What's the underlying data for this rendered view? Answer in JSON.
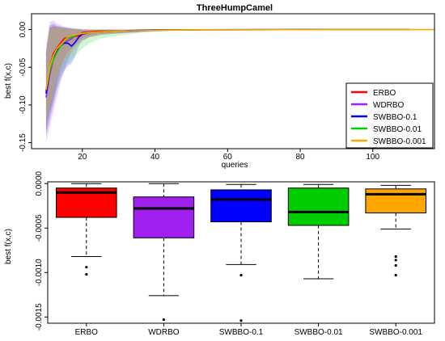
{
  "colors": {
    "ERBO": "#ff0000",
    "WDRBO": "#a020f0",
    "SWBBO-0.1": "#0000ff",
    "SWBBO-0.01": "#00cd00",
    "SWBBO-0.001": "#ffa500"
  },
  "chart_data": [
    {
      "type": "line",
      "title": "ThreeHumpCamel",
      "xlabel": "queries",
      "ylabel": "best f(x,c)",
      "xlim": [
        6,
        117
      ],
      "ylim": [
        -0.158,
        0.021
      ],
      "x_ticks": [
        20,
        40,
        60,
        80,
        100
      ],
      "y_ticks": [
        0.0,
        -0.05,
        -0.1,
        -0.15
      ],
      "y_tick_labels": [
        "0.00",
        "-0.05",
        "-0.10",
        "-0.15"
      ],
      "legend_position": "bottom-right",
      "shaded_bands": true,
      "series": [
        {
          "name": "ERBO",
          "x": [
            10,
            11,
            12,
            13,
            14,
            15,
            16,
            17,
            18,
            19,
            20,
            22,
            25,
            30,
            35,
            40,
            45,
            50,
            60,
            70,
            80,
            85,
            90,
            100,
            110
          ],
          "y": [
            -0.082,
            -0.05,
            -0.032,
            -0.024,
            -0.018,
            -0.012,
            -0.01,
            -0.009,
            -0.009,
            -0.008,
            -0.004,
            -0.003,
            -0.002,
            -0.002,
            -0.001,
            -0.0005,
            -0.0003,
            -0.0002,
            -0.0002,
            -0.0001,
            -0.0001,
            0.0,
            0.0,
            0.0,
            0.0
          ],
          "lower": [
            -0.135,
            -0.11,
            -0.095,
            -0.07,
            -0.05,
            -0.038,
            -0.03,
            -0.025,
            -0.02,
            -0.014,
            -0.011,
            -0.008,
            -0.005,
            -0.004,
            -0.003,
            -0.0015,
            -0.001,
            -0.0008,
            -0.0005,
            -0.0003,
            -0.0002,
            -0.0001,
            -0.0001,
            0.0,
            0.0
          ],
          "upper": [
            -0.03,
            0.002,
            0.005,
            0.004,
            0.003,
            0.002,
            0.002,
            0.001,
            0.001,
            0.0,
            0.0,
            0.0,
            0.0,
            0.0,
            0.0,
            0.0,
            0.0,
            0.0,
            0.0,
            0.0,
            0.0,
            0.0,
            0.0,
            0.0,
            0.0
          ]
        },
        {
          "name": "WDRBO",
          "x": [
            10,
            11,
            12,
            13,
            14,
            15,
            16,
            17,
            18,
            19,
            20,
            22,
            25,
            30,
            35,
            40,
            45,
            50,
            60,
            70,
            80,
            90,
            100,
            110
          ],
          "y": [
            -0.09,
            -0.06,
            -0.04,
            -0.028,
            -0.022,
            -0.018,
            -0.015,
            -0.012,
            -0.008,
            -0.006,
            -0.005,
            -0.004,
            -0.003,
            -0.002,
            -0.002,
            -0.001,
            -0.0005,
            -0.0003,
            -0.0002,
            -0.0001,
            0.0,
            0.0,
            0.0,
            0.0
          ],
          "lower": [
            -0.15,
            -0.13,
            -0.11,
            -0.09,
            -0.07,
            -0.055,
            -0.04,
            -0.03,
            -0.022,
            -0.018,
            -0.014,
            -0.01,
            -0.007,
            -0.005,
            -0.004,
            -0.002,
            -0.001,
            -0.0008,
            -0.0005,
            -0.0003,
            -0.0002,
            -0.0001,
            0.0,
            0.0
          ],
          "upper": [
            -0.02,
            0.01,
            0.012,
            0.008,
            0.006,
            0.004,
            0.003,
            0.002,
            0.002,
            0.001,
            0.001,
            0.0,
            0.0,
            0.0,
            0.0,
            0.0,
            0.0,
            0.0,
            0.0,
            0.0,
            0.0,
            0.0,
            0.0,
            0.0
          ]
        },
        {
          "name": "SWBBO-0.1",
          "x": [
            10,
            11,
            12,
            13,
            14,
            15,
            16,
            17,
            18,
            19,
            20,
            22,
            25,
            30,
            35,
            40,
            45,
            50,
            60,
            70,
            80,
            90,
            100,
            110
          ],
          "y": [
            -0.085,
            -0.055,
            -0.036,
            -0.028,
            -0.02,
            -0.018,
            -0.018,
            -0.022,
            -0.017,
            -0.01,
            -0.006,
            -0.004,
            -0.003,
            -0.002,
            -0.001,
            -0.0005,
            -0.0003,
            -0.0002,
            -0.0001,
            -0.0001,
            0.0,
            0.0,
            0.0,
            0.0
          ],
          "lower": [
            -0.14,
            -0.12,
            -0.1,
            -0.08,
            -0.065,
            -0.055,
            -0.048,
            -0.045,
            -0.036,
            -0.022,
            -0.015,
            -0.01,
            -0.007,
            -0.005,
            -0.003,
            -0.0015,
            -0.001,
            -0.0006,
            -0.0004,
            -0.0002,
            -0.0001,
            0.0,
            0.0,
            0.0
          ],
          "upper": [
            -0.03,
            0.005,
            0.008,
            0.005,
            0.004,
            0.003,
            0.002,
            0.002,
            0.001,
            0.001,
            0.0,
            0.0,
            0.0,
            0.0,
            0.0,
            0.0,
            0.0,
            0.0,
            0.0,
            0.0,
            0.0,
            0.0,
            0.0,
            0.0
          ]
        },
        {
          "name": "SWBBO-0.01",
          "x": [
            10,
            11,
            12,
            13,
            14,
            15,
            16,
            17,
            18,
            19,
            20,
            22,
            25,
            30,
            35,
            40,
            45,
            50,
            60,
            70,
            75,
            80,
            90,
            100,
            110
          ],
          "y": [
            -0.08,
            -0.055,
            -0.04,
            -0.03,
            -0.022,
            -0.016,
            -0.012,
            -0.01,
            -0.008,
            -0.006,
            -0.005,
            -0.004,
            -0.003,
            -0.002,
            -0.0015,
            -0.001,
            -0.0005,
            -0.0003,
            -0.0002,
            -0.0002,
            -0.0001,
            -0.0001,
            0.0,
            0.0,
            0.0
          ],
          "lower": [
            -0.13,
            -0.11,
            -0.09,
            -0.075,
            -0.06,
            -0.05,
            -0.045,
            -0.04,
            -0.035,
            -0.03,
            -0.025,
            -0.018,
            -0.012,
            -0.008,
            -0.005,
            -0.003,
            -0.002,
            -0.001,
            -0.0008,
            -0.0006,
            -0.0004,
            -0.0003,
            -0.0002,
            -0.0001,
            0.0
          ],
          "upper": [
            -0.03,
            0.003,
            0.004,
            0.004,
            0.003,
            0.002,
            0.002,
            0.001,
            0.001,
            0.001,
            0.0,
            0.0,
            0.0,
            0.0,
            0.0,
            0.0,
            0.0,
            0.0,
            0.0,
            0.0,
            0.0,
            0.0,
            0.0,
            0.0,
            0.0
          ]
        },
        {
          "name": "SWBBO-0.001",
          "x": [
            10,
            11,
            12,
            13,
            14,
            15,
            16,
            17,
            18,
            19,
            20,
            22,
            25,
            30,
            35,
            40,
            45,
            50,
            60,
            70,
            80,
            90,
            100,
            110,
            117
          ],
          "y": [
            -0.08,
            -0.05,
            -0.035,
            -0.025,
            -0.02,
            -0.015,
            -0.01,
            -0.008,
            -0.007,
            -0.006,
            -0.005,
            -0.004,
            -0.003,
            -0.002,
            -0.0015,
            -0.001,
            -0.0005,
            -0.0003,
            -0.0002,
            -0.0001,
            -0.0001,
            0.0,
            0.0,
            0.0,
            0.0
          ],
          "lower": [
            -0.12,
            -0.1,
            -0.08,
            -0.06,
            -0.05,
            -0.04,
            -0.035,
            -0.03,
            -0.025,
            -0.02,
            -0.015,
            -0.01,
            -0.007,
            -0.005,
            -0.003,
            -0.002,
            -0.001,
            -0.0008,
            -0.0005,
            -0.0003,
            -0.0002,
            -0.0001,
            0.0,
            0.0,
            0.0
          ],
          "upper": [
            -0.04,
            0.002,
            0.003,
            0.003,
            0.002,
            0.002,
            0.001,
            0.001,
            0.001,
            0.0,
            0.0,
            0.0,
            0.0,
            0.0,
            0.0,
            0.0,
            0.0,
            0.0,
            0.0,
            0.0,
            0.0,
            0.0,
            0.0,
            0.0,
            0.0
          ]
        }
      ]
    },
    {
      "type": "box",
      "title": "",
      "xlabel": "",
      "ylabel": "best f(x,c)",
      "ylim": [
        -0.00157,
        2e-05
      ],
      "y_ticks": [
        0.0,
        -0.0005,
        -0.001,
        -0.0015
      ],
      "y_tick_labels": [
        "0.0000",
        "-0.0005",
        "-0.0010",
        "-0.0015"
      ],
      "categories": [
        "ERBO",
        "WDRBO",
        "SWBBO-0.1",
        "SWBBO-0.01",
        "SWBBO-0.001"
      ],
      "boxes": [
        {
          "name": "ERBO",
          "whisker_low": -0.00082,
          "q1": -0.00038,
          "median": -0.0001,
          "q3": -5e-05,
          "whisker_high": 0.0,
          "outliers": [
            -0.00094,
            -0.00102
          ]
        },
        {
          "name": "WDRBO",
          "whisker_low": -0.00126,
          "q1": -0.00061,
          "median": -0.00028,
          "q3": -0.00015,
          "whisker_high": 0.0,
          "outliers": [
            -0.00153
          ]
        },
        {
          "name": "SWBBO-0.1",
          "whisker_low": -0.00091,
          "q1": -0.00043,
          "median": -0.00018,
          "q3": -7e-05,
          "whisker_high": -1e-05,
          "outliers": [
            -0.00103,
            -0.00154
          ]
        },
        {
          "name": "SWBBO-0.01",
          "whisker_low": -0.00107,
          "q1": -0.00047,
          "median": -0.00032,
          "q3": -5e-05,
          "whisker_high": -1e-05,
          "outliers": []
        },
        {
          "name": "SWBBO-0.001",
          "whisker_low": -0.00051,
          "q1": -0.00033,
          "median": -0.00012,
          "q3": -6e-05,
          "whisker_high": -2e-05,
          "outliers": [
            -0.00082,
            -0.00086,
            -0.00092,
            -0.00103
          ]
        }
      ]
    }
  ]
}
